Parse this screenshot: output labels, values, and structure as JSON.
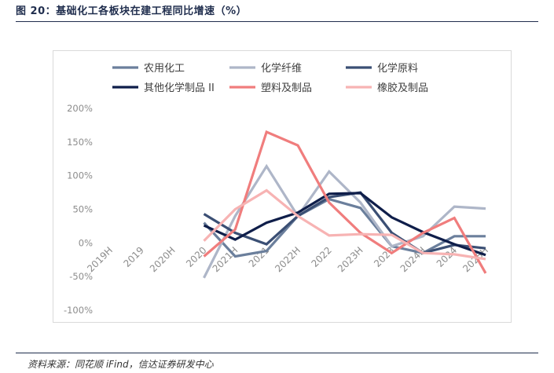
{
  "figure": {
    "title": "图 20：基础化工各板块在建工程同比增速（%）",
    "source": "资料来源：同花顺 iFind，信达证券研发中心"
  },
  "chart_data": {
    "type": "line",
    "categories": [
      "2019H",
      "2019",
      "2020H",
      "2020",
      "2021H",
      "2021",
      "2022H",
      "2022",
      "2023H",
      "2023",
      "2024H",
      "2024",
      "2025H"
    ],
    "yticks": [
      "200%",
      "150%",
      "100%",
      "50%",
      "0%",
      "-50%",
      "-100%"
    ],
    "ylim": [
      -100,
      200
    ],
    "yunit": "%",
    "grid": false,
    "legend_position": "top",
    "series": [
      {
        "name": "农用化工",
        "color": "#6b7f9c",
        "values": [
          null,
          null,
          null,
          30,
          -20,
          -12,
          40,
          65,
          52,
          -5,
          -15,
          10,
          10
        ]
      },
      {
        "name": "化学纤维",
        "color": "#aeb6c8",
        "values": [
          null,
          null,
          null,
          -52,
          40,
          114,
          40,
          106,
          60,
          -5,
          10,
          54,
          51
        ]
      },
      {
        "name": "化学原料",
        "color": "#3b4f74",
        "values": [
          null,
          null,
          null,
          43,
          15,
          -2,
          40,
          68,
          75,
          15,
          -15,
          -3,
          -8
        ]
      },
      {
        "name": "其他化学制品 II",
        "color": "#0f1e4a",
        "values": [
          null,
          null,
          null,
          26,
          5,
          30,
          45,
          73,
          74,
          38,
          16,
          -2,
          -18
        ]
      },
      {
        "name": "塑料及制品",
        "color": "#f07d7d",
        "values": [
          null,
          null,
          null,
          -20,
          20,
          165,
          145,
          60,
          15,
          -15,
          15,
          37,
          -45
        ]
      },
      {
        "name": "橡胶及制品",
        "color": "#f7b3b3",
        "values": [
          null,
          null,
          null,
          3,
          50,
          78,
          40,
          11,
          13,
          12,
          -15,
          -17,
          -24
        ]
      }
    ]
  }
}
